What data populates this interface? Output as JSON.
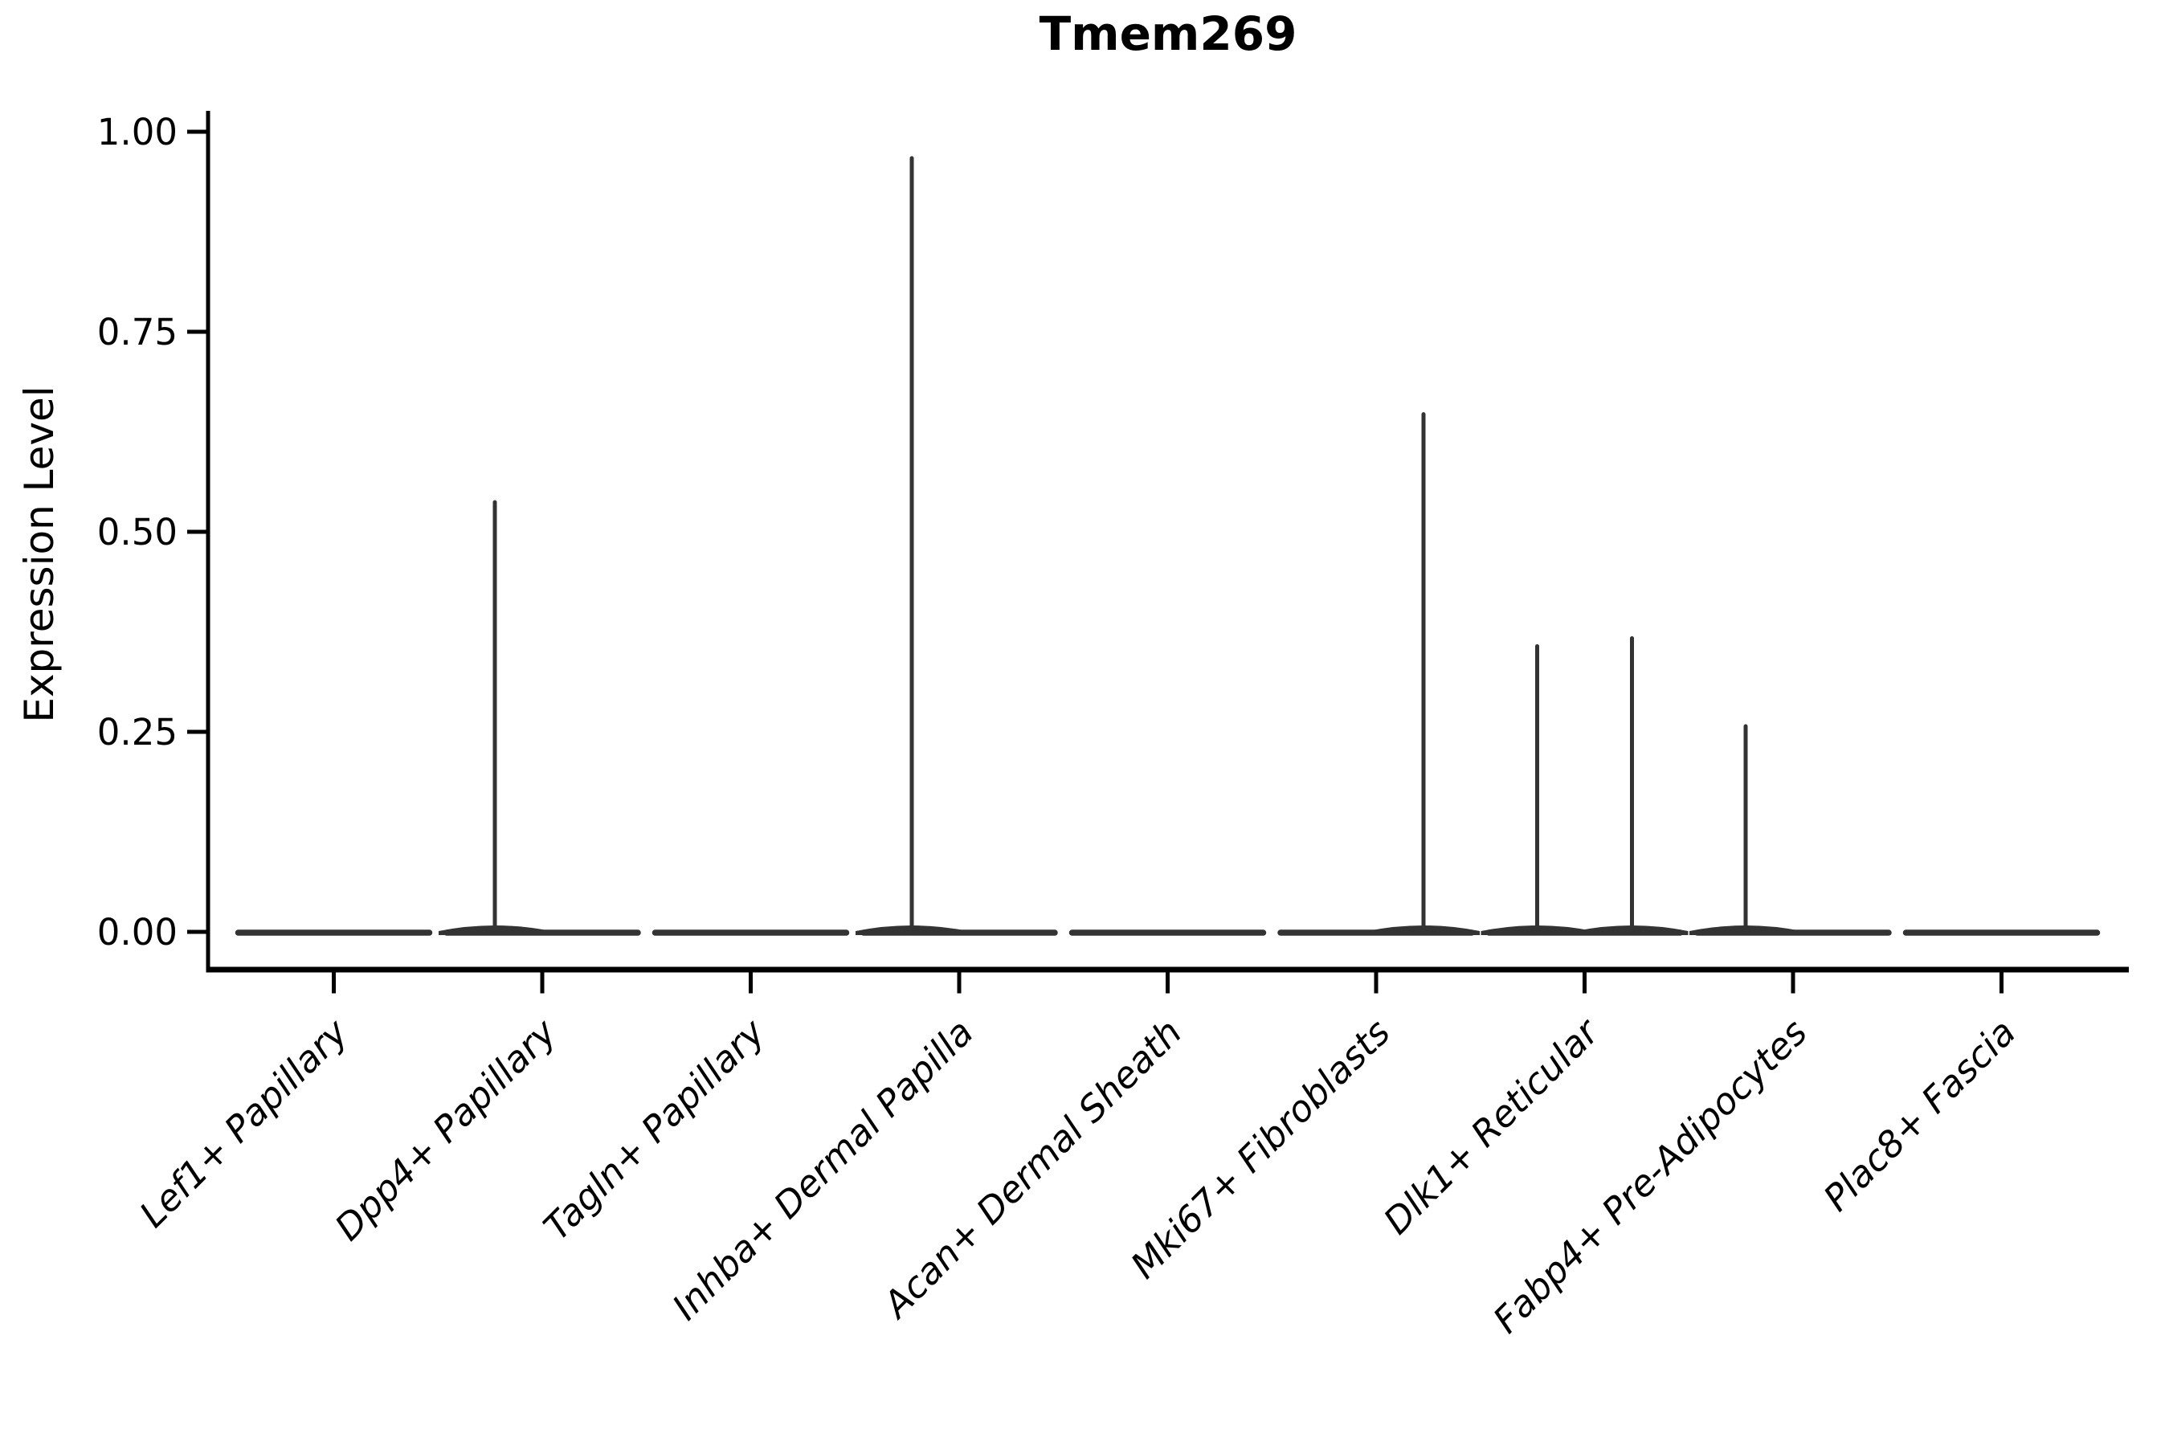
{
  "chart_data": {
    "type": "violin",
    "title": "Tmem269",
    "xlabel": "",
    "ylabel": "Expression Level",
    "ylim": [
      0,
      1.0
    ],
    "yticks": [
      0,
      0.25,
      0.5,
      0.75,
      1.0
    ],
    "ytick_labels": [
      "0.00",
      "0.25",
      "0.50",
      "0.75",
      "1.00"
    ],
    "grid": false,
    "legend": "none",
    "categories": [
      "Lef1+ Papillary",
      "Dpp4+ Papillary",
      "Tagln+ Papillary",
      "Inhba+ Dermal Papilla",
      "Acan+ Dermal Sheath",
      "Mki67+ Fibroblasts",
      "Dlk1+ Reticular",
      "Fabp4+ Pre-Adipocytes",
      "Plac8+ Fascia"
    ],
    "violins": [
      {
        "category": "Lef1+ Papillary",
        "bulk_value": 0,
        "spikes": []
      },
      {
        "category": "Dpp4+ Papillary",
        "bulk_value": 0,
        "spikes": [
          {
            "side": "left",
            "max_value": 0.54
          }
        ]
      },
      {
        "category": "Tagln+ Papillary",
        "bulk_value": 0,
        "spikes": []
      },
      {
        "category": "Inhba+ Dermal Papilla",
        "bulk_value": 0,
        "spikes": [
          {
            "side": "left",
            "max_value": 0.97
          }
        ]
      },
      {
        "category": "Acan+ Dermal Sheath",
        "bulk_value": 0,
        "spikes": []
      },
      {
        "category": "Mki67+ Fibroblasts",
        "bulk_value": 0,
        "spikes": [
          {
            "side": "right",
            "max_value": 0.65
          }
        ]
      },
      {
        "category": "Dlk1+ Reticular",
        "bulk_value": 0,
        "spikes": [
          {
            "side": "left",
            "max_value": 0.36
          },
          {
            "side": "right",
            "max_value": 0.37
          }
        ]
      },
      {
        "category": "Fabp4+ Pre-Adipocytes",
        "bulk_value": 0,
        "spikes": [
          {
            "side": "left",
            "max_value": 0.26
          }
        ]
      },
      {
        "category": "Plac8+ Fascia",
        "bulk_value": 0,
        "spikes": []
      }
    ],
    "colors": {
      "violin": "#333333",
      "axis": "#000000",
      "text": "#000000",
      "background": "#ffffff"
    }
  }
}
